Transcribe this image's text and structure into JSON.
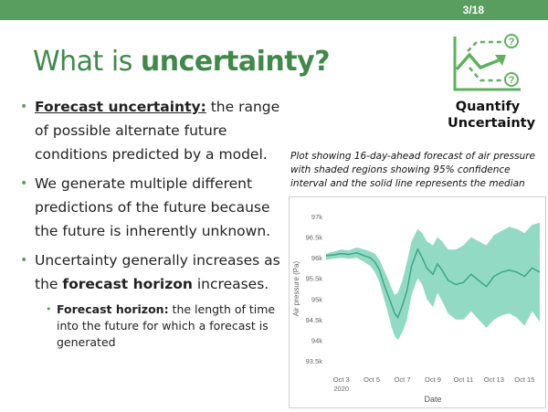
{
  "slide": {
    "page_number": "3/18",
    "title_plain": "What is ",
    "title_bold": "uncertainty?"
  },
  "bullets": [
    {
      "term": "Forecast uncertainty:",
      "text": " the range of possible alternate future conditions predicted by a model."
    },
    {
      "text": "We generate multiple different predictions of the future because the future is inherently unknown."
    },
    {
      "text_before": "Uncertainty generally increases as the ",
      "bold": "forecast horizon",
      "text_after": " increases."
    }
  ],
  "sub_bullet": {
    "term": "Forecast horizon:",
    "text": " the length of time into the future for which a forecast is generated"
  },
  "icon": {
    "name": "quantify-uncertainty-icon",
    "label_line1": "Quantify",
    "label_line2": "Uncertainty",
    "color": "#5fb05f"
  },
  "caption": "Plot showing 16-day-ahead forecast of air pressure with shaded regions showing 95% confidence interval and the solid line represents the median",
  "chart_data": {
    "type": "area",
    "xlabel": "Date",
    "ylabel": "Air pressure (Pa)",
    "x_ticks": [
      "Oct 3",
      "Oct 5",
      "Oct 7",
      "Oct 9",
      "Oct 11",
      "Oct 13",
      "Oct 15"
    ],
    "x_tick_year": "2020",
    "y_ticks": [
      "97k",
      "96.5k",
      "96k",
      "95.5k",
      "95k",
      "94.5k",
      "94k",
      "93.5k"
    ],
    "y_tick_values": [
      97000,
      96500,
      96000,
      95500,
      95000,
      94500,
      94000,
      93500
    ],
    "ylim": [
      93300,
      97200
    ],
    "x_day_range": [
      2,
      16
    ],
    "series": [
      {
        "days": [
          2.0,
          2.5,
          3.0,
          3.5,
          4.0,
          4.5,
          4.9,
          5.2,
          5.5,
          5.8,
          6.1,
          6.3,
          6.5,
          6.7,
          7.0,
          7.3,
          7.6,
          8.0,
          8.3,
          8.6,
          9.0,
          9.3,
          9.6,
          10.0,
          10.5,
          11.0,
          11.5,
          12.0,
          12.5,
          13.0,
          13.5,
          14.0,
          14.5,
          15.0,
          15.5,
          16.0
        ],
        "median": [
          96050,
          96070,
          96100,
          96080,
          96120,
          96050,
          96000,
          95900,
          95700,
          95350,
          95050,
          94850,
          94650,
          94550,
          94850,
          95200,
          95800,
          96200,
          96000,
          95750,
          95600,
          95850,
          95700,
          95450,
          95350,
          95400,
          95600,
          95450,
          95300,
          95550,
          95650,
          95700,
          95650,
          95550,
          95750,
          95650
        ],
        "upper": [
          96100,
          96150,
          96200,
          96180,
          96250,
          96200,
          96150,
          96100,
          95950,
          95700,
          95450,
          95250,
          95100,
          95150,
          95450,
          95900,
          96400,
          96700,
          96600,
          96400,
          96300,
          96500,
          96400,
          96200,
          96200,
          96300,
          96500,
          96400,
          96300,
          96550,
          96650,
          96750,
          96700,
          96600,
          96800,
          96850
        ],
        "lower": [
          95950,
          95980,
          96000,
          95980,
          96000,
          95900,
          95800,
          95650,
          95400,
          95000,
          94600,
          94300,
          94100,
          94000,
          94200,
          94500,
          95100,
          95500,
          95350,
          95000,
          94800,
          95150,
          94950,
          94650,
          94500,
          94500,
          94700,
          94500,
          94300,
          94500,
          94600,
          94650,
          94550,
          94350,
          94700,
          94450
        ]
      }
    ],
    "band_color": "#7fd4b8",
    "line_color": "#3aa886"
  }
}
